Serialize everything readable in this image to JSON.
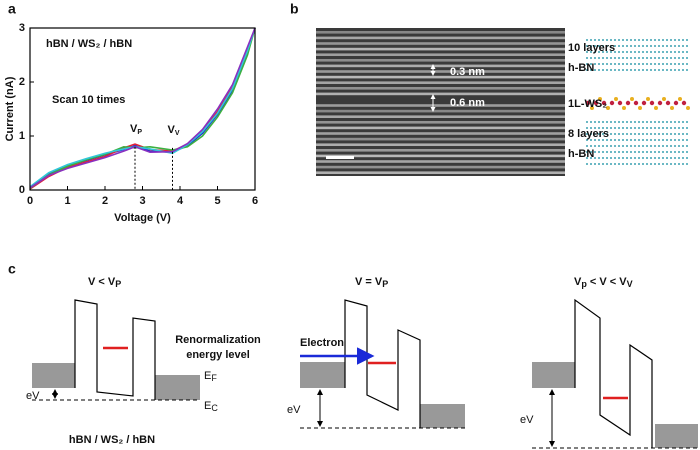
{
  "panel_labels": [
    "a",
    "b",
    "c"
  ],
  "chart_data": {
    "type": "line",
    "xlabel": "Voltage (V)",
    "ylabel": "Current (nA)",
    "x": [
      0,
      0.5,
      1,
      1.5,
      2,
      2.5,
      2.8,
      3.2,
      3.8,
      4.2,
      4.6,
      5,
      5.4,
      5.8,
      6
    ],
    "series": [
      {
        "color": "#1f2fd0",
        "values": [
          0.05,
          0.3,
          0.45,
          0.55,
          0.65,
          0.75,
          0.82,
          0.72,
          0.7,
          0.82,
          1.05,
          1.4,
          1.85,
          2.55,
          3.0
        ]
      },
      {
        "color": "#e0203a",
        "values": [
          0.02,
          0.25,
          0.42,
          0.52,
          0.62,
          0.78,
          0.85,
          0.75,
          0.72,
          0.85,
          1.1,
          1.45,
          1.9,
          2.6,
          3.0
        ]
      },
      {
        "color": "#3cb040",
        "values": [
          0.03,
          0.28,
          0.44,
          0.56,
          0.66,
          0.8,
          0.78,
          0.8,
          0.74,
          0.8,
          1.0,
          1.35,
          1.8,
          2.5,
          3.0
        ]
      },
      {
        "color": "#30c8d8",
        "values": [
          0.06,
          0.32,
          0.47,
          0.58,
          0.68,
          0.76,
          0.8,
          0.76,
          0.68,
          0.84,
          1.08,
          1.42,
          1.88,
          2.58,
          3.0
        ]
      },
      {
        "color": "#8a30c0",
        "values": [
          0.04,
          0.27,
          0.4,
          0.5,
          0.6,
          0.72,
          0.8,
          0.7,
          0.71,
          0.86,
          1.12,
          1.5,
          1.95,
          2.65,
          3.0
        ]
      }
    ],
    "xlim": [
      0,
      6
    ],
    "ylim": [
      0,
      3
    ],
    "xticks": [
      0,
      1,
      2,
      3,
      4,
      5,
      6
    ],
    "yticks": [
      0,
      1,
      2,
      3
    ],
    "annotations": [
      "hBN / WS₂ / hBN",
      "Scan 10 times"
    ],
    "markers": [
      {
        "x": 2.8,
        "y": 0.8,
        "label": [
          "V",
          "P"
        ]
      },
      {
        "x": 3.8,
        "y": 0.78,
        "label": [
          "V",
          "V"
        ]
      }
    ]
  },
  "tem": {
    "spacings": [
      "0.3 nm",
      "0.6 nm"
    ],
    "layers": [
      "10 layers",
      "h-BN",
      "1L-WS₂",
      "8 layers",
      "h-BN"
    ]
  },
  "diagrams": [
    {
      "title": [
        "V < V",
        "P"
      ],
      "note": [
        "Renormalization",
        "energy level"
      ],
      "fermi": [
        "E",
        "F"
      ],
      "conduction": [
        "E",
        "C"
      ],
      "bias": "eV",
      "stack": "hBN / WS₂ / hBN"
    },
    {
      "title": [
        "V = V",
        "P"
      ],
      "electron": "Electron",
      "bias": "eV"
    },
    {
      "title": [
        "V",
        "p",
        " < V < V",
        "V"
      ],
      "bias": "eV"
    }
  ]
}
